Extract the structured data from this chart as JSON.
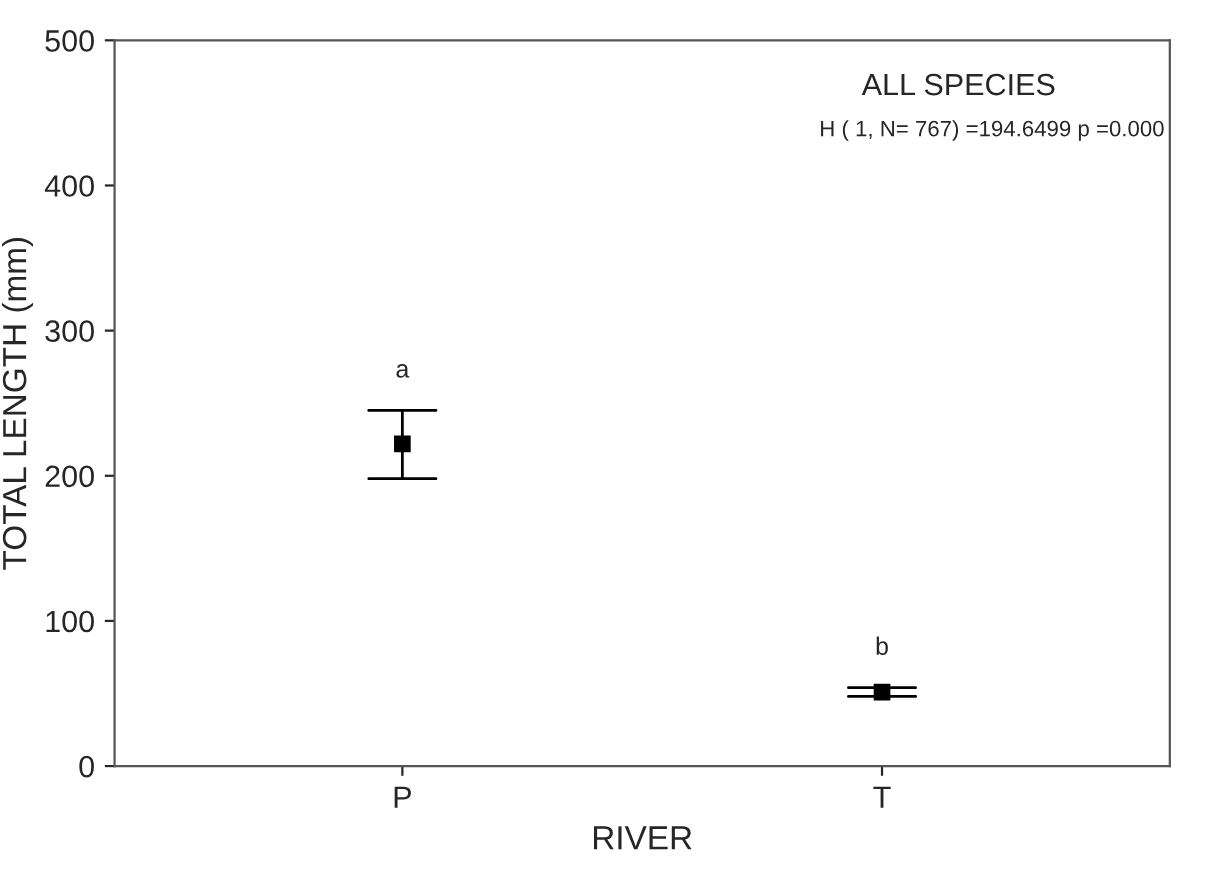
{
  "chart_data": {
    "type": "scatter",
    "title": "ALL SPECIES",
    "subtitle": "H ( 1, N= 767) =194.6499 p =0.000",
    "xlabel": "RIVER",
    "ylabel": "TOTAL LENGTH (mm)",
    "categories": [
      "P",
      "T"
    ],
    "series": [
      {
        "color": "#000000",
        "values": [
          222,
          51
        ],
        "errors": [
          [
            198,
            245
          ],
          [
            48,
            54
          ]
        ]
      }
    ],
    "annotations": [
      "a",
      "b"
    ],
    "ylim": [
      0,
      500
    ],
    "yticks": [
      0,
      100,
      200,
      300,
      400,
      500
    ],
    "marker": "square",
    "grid": false,
    "legend": false
  }
}
